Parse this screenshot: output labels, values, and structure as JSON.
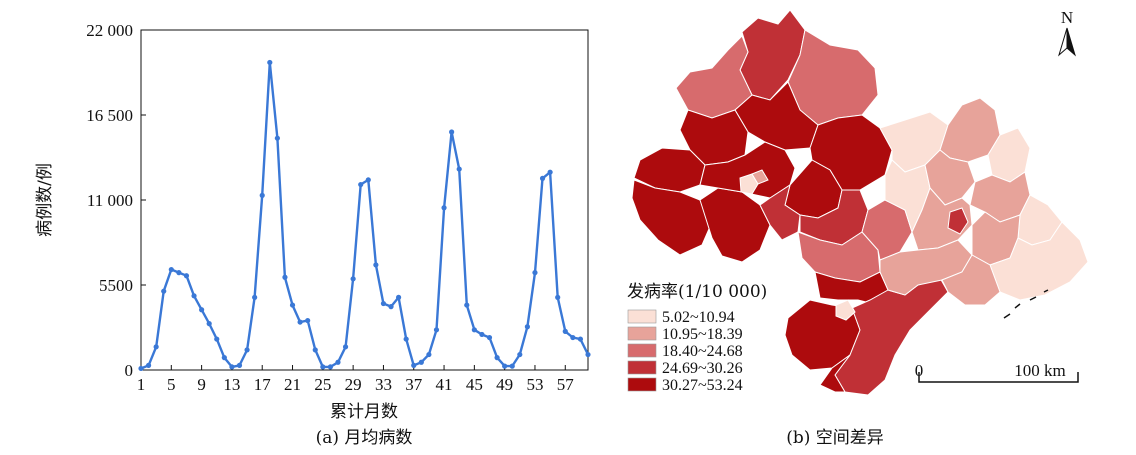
{
  "chart_data": [
    {
      "type": "line",
      "caption": "(a) 月均病数",
      "xlabel": "累计月数",
      "ylabel": "病例数/例",
      "xlim": [
        1,
        60
      ],
      "ylim": [
        0,
        22000
      ],
      "xticks": [
        1,
        5,
        9,
        13,
        17,
        21,
        25,
        29,
        33,
        37,
        41,
        45,
        49,
        53,
        57
      ],
      "yticks": [
        {
          "value": 0,
          "label": "0"
        },
        {
          "value": 5500,
          "label": "5500"
        },
        {
          "value": 11000,
          "label": "11 000"
        },
        {
          "value": 16500,
          "label": "16 500"
        },
        {
          "value": 22000,
          "label": "22 000"
        }
      ],
      "grid": false,
      "line_color": "#3a78d6",
      "x": [
        1,
        2,
        3,
        4,
        5,
        6,
        7,
        8,
        9,
        10,
        11,
        12,
        13,
        14,
        15,
        16,
        17,
        18,
        19,
        20,
        21,
        22,
        23,
        24,
        25,
        26,
        27,
        28,
        29,
        30,
        31,
        32,
        33,
        34,
        35,
        36,
        37,
        38,
        39,
        40,
        41,
        42,
        43,
        44,
        45,
        46,
        47,
        48,
        49,
        50,
        51,
        52,
        53,
        54,
        55,
        56,
        57,
        58,
        59,
        60
      ],
      "y": [
        100,
        300,
        1500,
        5100,
        6500,
        6300,
        6100,
        4800,
        3900,
        3000,
        2000,
        800,
        200,
        300,
        1300,
        4700,
        11300,
        19900,
        15000,
        6000,
        4200,
        3100,
        3200,
        1300,
        200,
        200,
        500,
        1500,
        5900,
        12000,
        12300,
        6800,
        4300,
        4100,
        4700,
        2000,
        300,
        500,
        1000,
        2600,
        10500,
        15400,
        13000,
        4200,
        2600,
        2300,
        2100,
        800,
        250,
        250,
        1000,
        2800,
        6300,
        12400,
        12800,
        4700,
        2500,
        2100,
        2000,
        1000
      ]
    },
    {
      "type": "choropleth",
      "caption": "(b) 空间差异",
      "legend_title": "发病率(1/10 000)",
      "legend_position": "bottom-left",
      "classes": [
        {
          "label": "5.02~10.94",
          "color": "#fbe0d6"
        },
        {
          "label": "10.95~18.39",
          "color": "#e7a39a"
        },
        {
          "label": "18.40~24.68",
          "color": "#d76b6d"
        },
        {
          "label": "24.69~30.26",
          "color": "#c03036"
        },
        {
          "label": "30.27~53.24",
          "color": "#ad0b0d"
        }
      ],
      "north_label": "N",
      "scale_labels": [
        "0",
        "100 km"
      ]
    }
  ]
}
